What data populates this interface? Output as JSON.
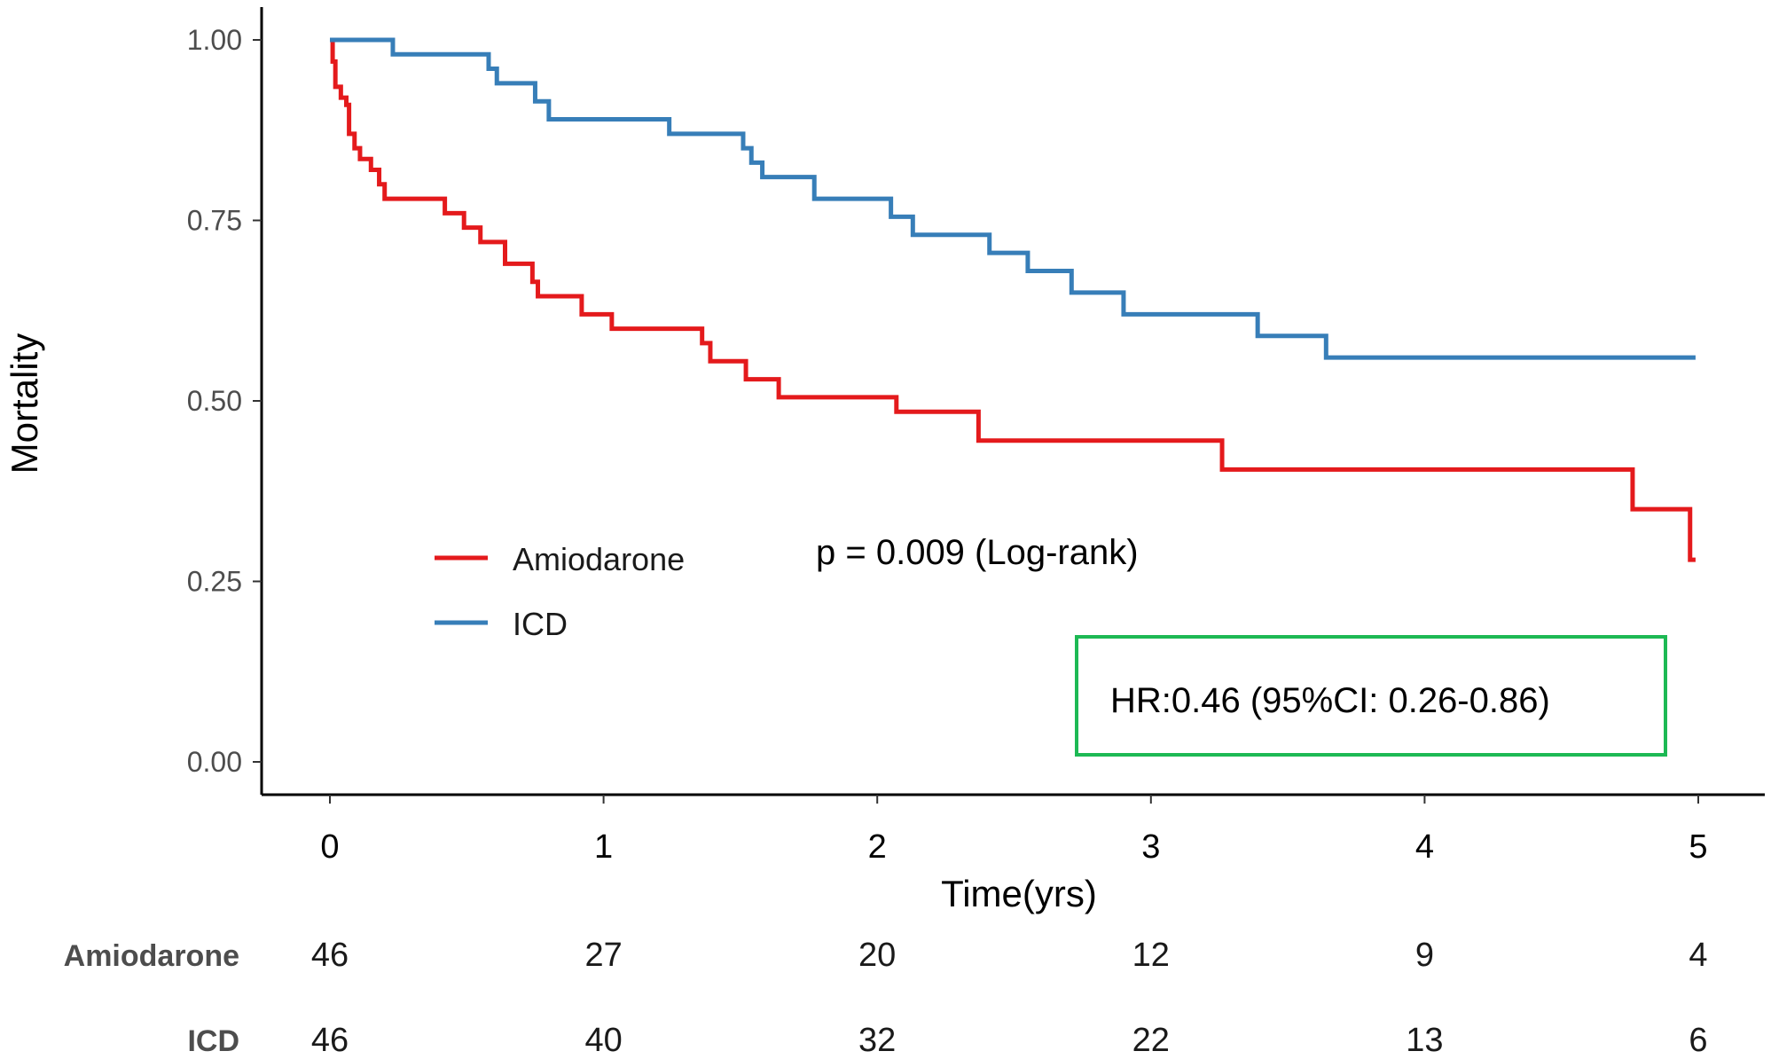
{
  "chart_data": {
    "type": "line",
    "subtype": "kaplan-meier step curve",
    "xlabel": "Time(yrs)",
    "ylabel": "Mortality",
    "xlim": [
      0,
      5
    ],
    "ylim": [
      0,
      1
    ],
    "x_ticks": [
      "0",
      "1",
      "2",
      "3",
      "4",
      "5"
    ],
    "y_ticks": [
      "0.00",
      "0.25",
      "0.50",
      "0.75",
      "1.00"
    ],
    "grid": false,
    "legend_placement": "left-center",
    "colors": {
      "Amiodarone": "#e41a1c",
      "ICD": "#377eb8",
      "hr_box_border": "#1db954"
    },
    "series": [
      {
        "name": "Amiodarone",
        "points": [
          [
            0,
            1.0
          ],
          [
            0.01,
            0.97
          ],
          [
            0.02,
            0.935
          ],
          [
            0.04,
            0.92
          ],
          [
            0.06,
            0.91
          ],
          [
            0.07,
            0.87
          ],
          [
            0.09,
            0.85
          ],
          [
            0.11,
            0.835
          ],
          [
            0.15,
            0.82
          ],
          [
            0.18,
            0.8
          ],
          [
            0.2,
            0.78
          ],
          [
            0.42,
            0.76
          ],
          [
            0.49,
            0.74
          ],
          [
            0.55,
            0.72
          ],
          [
            0.64,
            0.69
          ],
          [
            0.74,
            0.665
          ],
          [
            0.76,
            0.645
          ],
          [
            0.92,
            0.62
          ],
          [
            1.03,
            0.6
          ],
          [
            1.36,
            0.58
          ],
          [
            1.39,
            0.555
          ],
          [
            1.52,
            0.53
          ],
          [
            1.64,
            0.505
          ],
          [
            2.07,
            0.485
          ],
          [
            2.37,
            0.445
          ],
          [
            3.26,
            0.405
          ],
          [
            4.76,
            0.35
          ],
          [
            4.97,
            0.28
          ],
          [
            4.99,
            0.28
          ]
        ]
      },
      {
        "name": "ICD",
        "points": [
          [
            0,
            1.0
          ],
          [
            0.23,
            0.98
          ],
          [
            0.58,
            0.96
          ],
          [
            0.61,
            0.94
          ],
          [
            0.75,
            0.915
          ],
          [
            0.8,
            0.89
          ],
          [
            1.24,
            0.87
          ],
          [
            1.51,
            0.85
          ],
          [
            1.54,
            0.83
          ],
          [
            1.58,
            0.81
          ],
          [
            1.77,
            0.78
          ],
          [
            2.05,
            0.755
          ],
          [
            2.13,
            0.73
          ],
          [
            2.41,
            0.705
          ],
          [
            2.55,
            0.68
          ],
          [
            2.71,
            0.65
          ],
          [
            2.9,
            0.62
          ],
          [
            3.39,
            0.59
          ],
          [
            3.64,
            0.56
          ],
          [
            4.99,
            0.56
          ]
        ]
      }
    ],
    "annotations": {
      "pvalue": "p = 0.009 (Log-rank)",
      "hr": "HR:0.46 (95%CI: 0.26-0.86)"
    },
    "risk_table": {
      "times": [
        0,
        1,
        2,
        3,
        4,
        5
      ],
      "rows": [
        {
          "label": "Amiodarone",
          "values": [
            "46",
            "27",
            "20",
            "12",
            "9",
            "4"
          ]
        },
        {
          "label": "ICD",
          "values": [
            "46",
            "40",
            "32",
            "22",
            "13",
            "6"
          ]
        }
      ]
    }
  }
}
